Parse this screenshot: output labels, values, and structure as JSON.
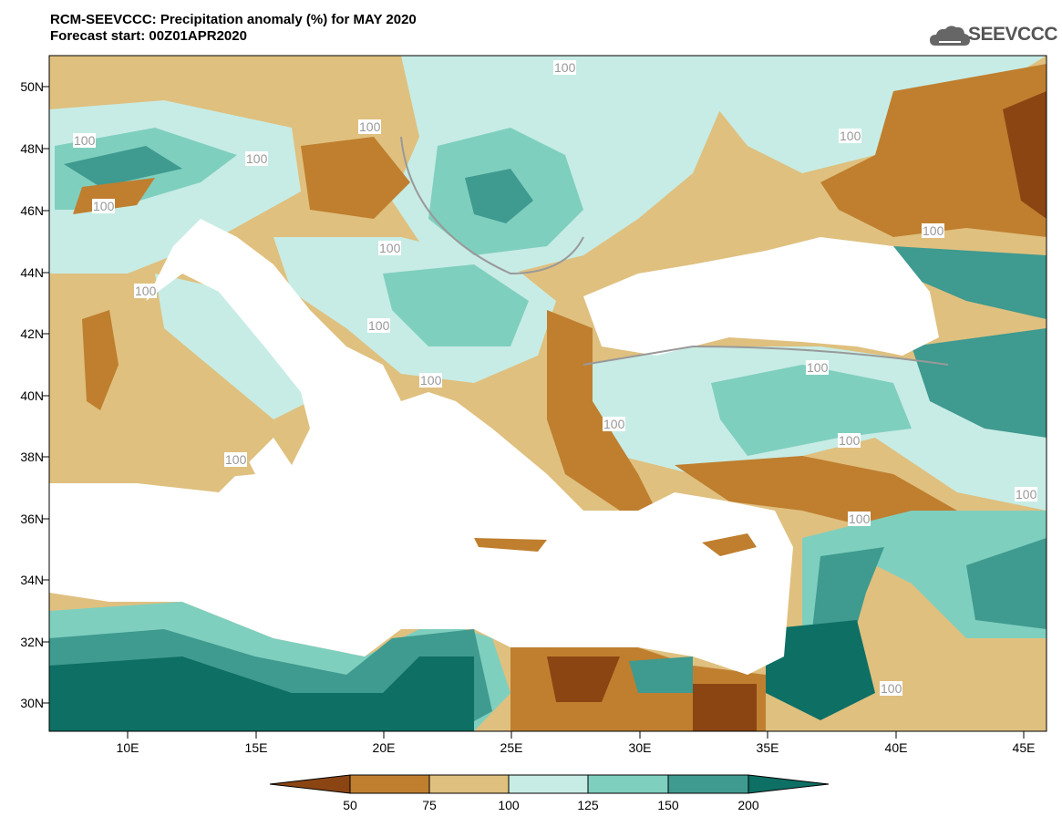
{
  "title": {
    "line1": "RCM-SEEVCCC: Precipitation anomaly (%) for MAY 2020",
    "line2": "Forecast start: 00Z01APR2020"
  },
  "logo": {
    "text": "SEEVCCC",
    "icon": "cloud-icon"
  },
  "axes": {
    "lat_labels": [
      "50N",
      "48N",
      "46N",
      "44N",
      "42N",
      "40N",
      "38N",
      "36N",
      "34N",
      "32N",
      "30N"
    ],
    "lon_labels": [
      "10E",
      "15E",
      "20E",
      "25E",
      "30E",
      "35E",
      "40E",
      "45E"
    ]
  },
  "contour_labels": [
    "100",
    "100",
    "100",
    "100",
    "100",
    "100",
    "100",
    "100",
    "100",
    "100",
    "100",
    "100",
    "100",
    "100",
    "100",
    "100",
    "100",
    "100"
  ],
  "colorbar": {
    "labels": [
      "50",
      "75",
      "100",
      "125",
      "150",
      "200"
    ],
    "colors": [
      "#8B4513",
      "#BF7F2F",
      "#DFC07F",
      "#C7ECE5",
      "#7FCFBF",
      "#3F9A8F",
      "#0E6F64"
    ]
  },
  "colors": {
    "very_dry": "#8B4513",
    "dry": "#BF7F2F",
    "slightly_dry": "#DFC07F",
    "slightly_wet": "#C7ECE5",
    "wet": "#7FCFBF",
    "very_wet": "#3F9A8F",
    "extreme_wet": "#0E6F64",
    "sea": "#ffffff"
  }
}
